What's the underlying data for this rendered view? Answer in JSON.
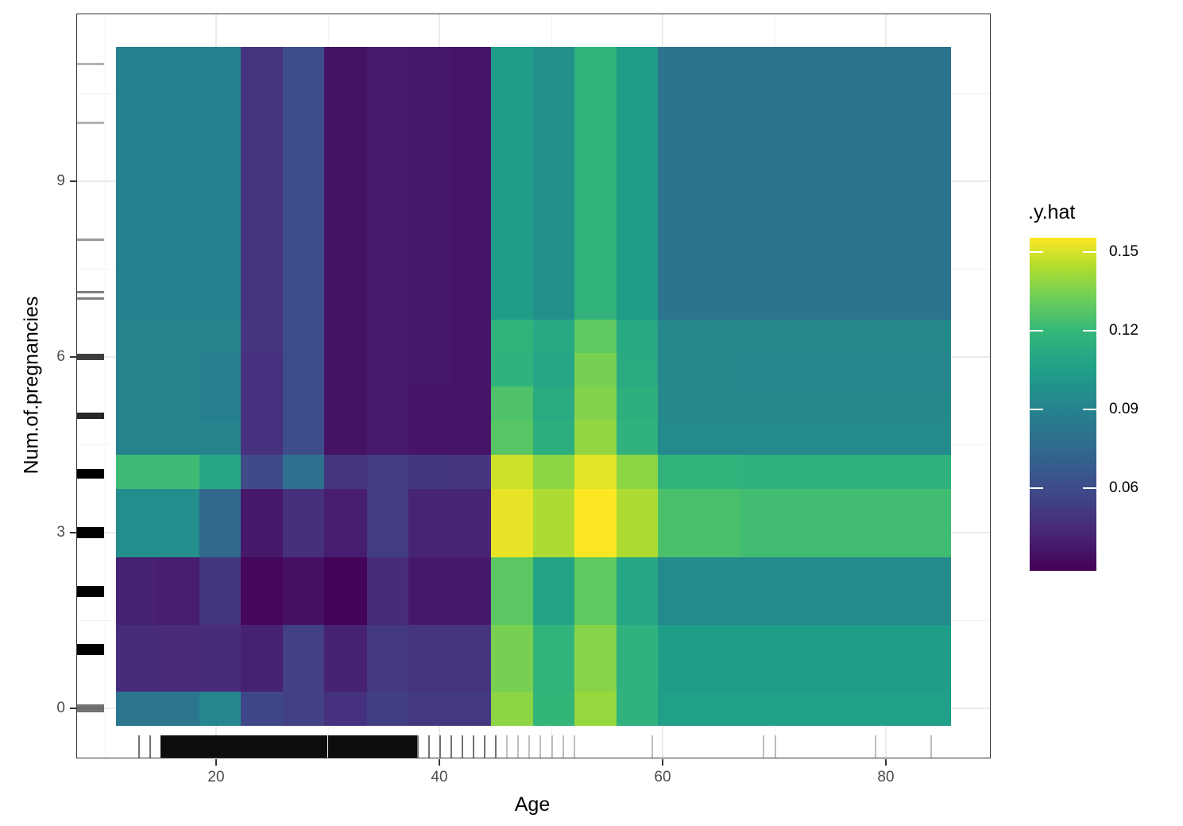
{
  "chart_data": {
    "type": "heatmap",
    "title": "",
    "xlabel": "Age",
    "ylabel": "Num.of.pregnancies",
    "xlim": [
      8.5,
      88.5
    ],
    "ylim": [
      -0.9,
      12.0
    ],
    "x_ticks": [
      20,
      40,
      60,
      80
    ],
    "y_ticks": [
      0,
      3,
      6,
      9
    ],
    "grid": true,
    "legend": {
      "title": ".y.hat",
      "position": "right",
      "type": "colorbar",
      "colormap": "viridis",
      "range": [
        0.035,
        0.155
      ],
      "ticks": [
        0.06,
        0.09,
        0.12,
        0.15
      ],
      "tick_labels": [
        "0.06",
        "0.09",
        "0.12",
        "0.15"
      ]
    },
    "x_bin_edges": [
      11.0,
      14.7,
      18.5,
      22.2,
      26.0,
      29.7,
      33.5,
      37.2,
      41.0,
      44.6,
      48.4,
      52.1,
      55.9,
      59.6,
      67.0,
      85.8
    ],
    "y_bin_edges": [
      -0.29,
      0.29,
      1.44,
      2.59,
      3.76,
      4.34,
      4.93,
      5.51,
      6.08,
      6.65,
      11.29
    ],
    "row_order": "bottom_to_top",
    "values": [
      [
        0.082,
        0.082,
        0.09,
        0.06,
        0.058,
        0.052,
        0.057,
        0.055,
        0.055,
        0.134,
        0.114,
        0.136,
        0.112,
        0.102,
        0.102
      ],
      [
        0.05,
        0.049,
        0.05,
        0.046,
        0.058,
        0.046,
        0.055,
        0.053,
        0.053,
        0.13,
        0.113,
        0.133,
        0.112,
        0.101,
        0.101
      ],
      [
        0.046,
        0.045,
        0.054,
        0.037,
        0.04,
        0.036,
        0.05,
        0.043,
        0.043,
        0.124,
        0.104,
        0.125,
        0.106,
        0.092,
        0.092
      ],
      [
        0.094,
        0.094,
        0.075,
        0.043,
        0.051,
        0.045,
        0.056,
        0.047,
        0.047,
        0.151,
        0.14,
        0.156,
        0.14,
        0.12,
        0.118
      ],
      [
        0.117,
        0.117,
        0.106,
        0.062,
        0.08,
        0.053,
        0.056,
        0.054,
        0.053,
        0.146,
        0.134,
        0.15,
        0.134,
        0.113,
        0.112
      ],
      [
        0.089,
        0.089,
        0.089,
        0.052,
        0.063,
        0.041,
        0.044,
        0.042,
        0.042,
        0.123,
        0.11,
        0.135,
        0.112,
        0.092,
        0.092
      ],
      [
        0.089,
        0.089,
        0.087,
        0.052,
        0.063,
        0.041,
        0.044,
        0.042,
        0.042,
        0.121,
        0.108,
        0.132,
        0.111,
        0.091,
        0.091
      ],
      [
        0.089,
        0.089,
        0.087,
        0.052,
        0.063,
        0.041,
        0.044,
        0.043,
        0.042,
        0.112,
        0.106,
        0.13,
        0.108,
        0.091,
        0.09
      ],
      [
        0.089,
        0.089,
        0.089,
        0.053,
        0.063,
        0.041,
        0.044,
        0.043,
        0.042,
        0.113,
        0.107,
        0.125,
        0.107,
        0.091,
        0.091
      ],
      [
        0.088,
        0.088,
        0.088,
        0.053,
        0.063,
        0.041,
        0.044,
        0.043,
        0.042,
        0.101,
        0.095,
        0.113,
        0.101,
        0.081,
        0.081
      ]
    ],
    "rug_x_note": "Age observations dense from ~15 to ~45, sparse to ~84",
    "rug_x": [
      13,
      14,
      15,
      16,
      17,
      18,
      19,
      20,
      21,
      22,
      23,
      24,
      25,
      26,
      27,
      28,
      29,
      30,
      31,
      32,
      33,
      34,
      35,
      36,
      37,
      38,
      39,
      40,
      41,
      42,
      43,
      44,
      45,
      46,
      47,
      48,
      49,
      50,
      51,
      52,
      59,
      69,
      70,
      79,
      84
    ],
    "rug_y": [
      0,
      1,
      2,
      3,
      4,
      5,
      6,
      7,
      7.1,
      8,
      10,
      11
    ]
  },
  "axes": {
    "x_title": "Age",
    "y_title": "Num.of.pregnancies",
    "x_tick_labels": [
      "20",
      "40",
      "60",
      "80"
    ],
    "y_tick_labels": [
      "0",
      "3",
      "6",
      "9"
    ]
  },
  "legend": {
    "title": ".y.hat",
    "labels": [
      "0.15",
      "0.12",
      "0.09",
      "0.06"
    ]
  }
}
